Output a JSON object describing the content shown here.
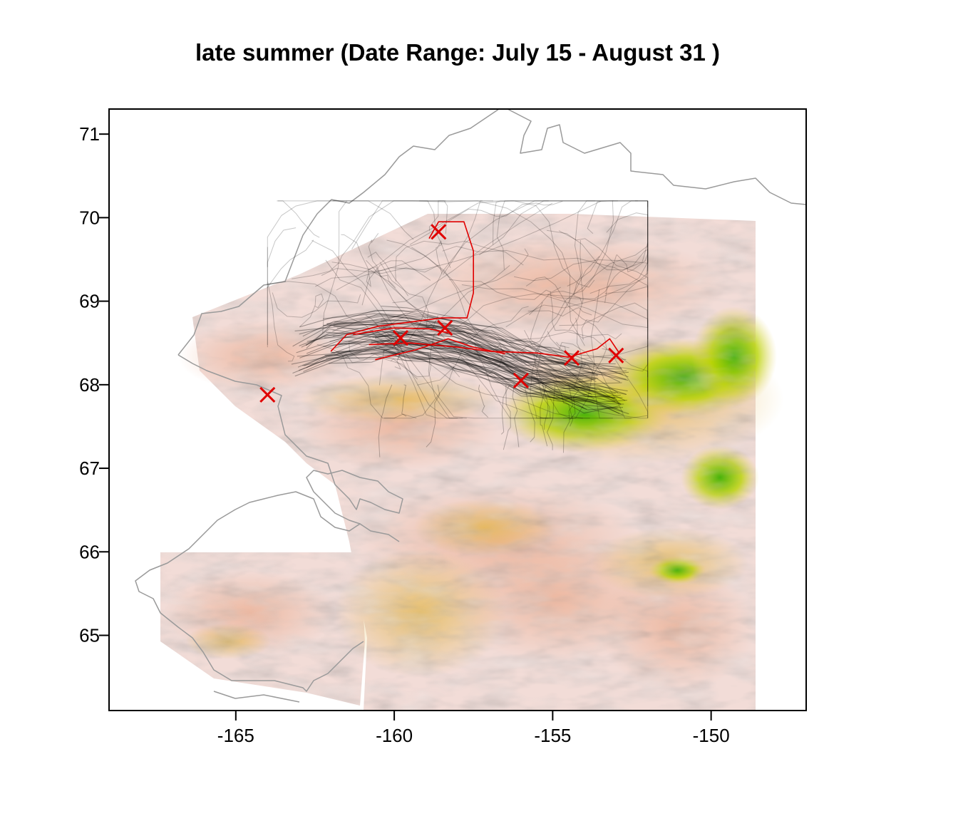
{
  "title": "late summer (Date Range:  July 15 - August 31 )",
  "colors": {
    "coast": "#9a9a9a",
    "track": "#000000",
    "highlight": "#e00000",
    "marker": "#e00000",
    "frame": "#000000"
  },
  "axes": {
    "x": {
      "ticks": [
        -165,
        -160,
        -155,
        -150
      ],
      "labels": [
        "-165",
        "-160",
        "-155",
        "-150"
      ],
      "range": [
        -169,
        -147
      ]
    },
    "y": {
      "ticks": [
        65,
        66,
        67,
        68,
        69,
        70,
        71
      ],
      "labels": [
        "65",
        "66",
        "67",
        "68",
        "69",
        "70",
        "71"
      ],
      "range": [
        64.1,
        71.3
      ]
    }
  },
  "markers": [
    {
      "lon": -164.0,
      "lat": 67.88
    },
    {
      "lon": -158.6,
      "lat": 69.83
    },
    {
      "lon": -159.8,
      "lat": 68.56
    },
    {
      "lon": -158.4,
      "lat": 68.68
    },
    {
      "lon": -156.0,
      "lat": 68.05
    },
    {
      "lon": -154.4,
      "lat": 68.32
    },
    {
      "lon": -153.0,
      "lat": 68.35
    }
  ],
  "red_tracks": [
    [
      [
        -162.0,
        68.4
      ],
      [
        -161.5,
        68.6
      ],
      [
        -160.5,
        68.7
      ],
      [
        -159.5,
        68.75
      ],
      [
        -158.5,
        68.8
      ],
      [
        -157.7,
        68.8
      ],
      [
        -157.5,
        69.1
      ],
      [
        -157.5,
        69.6
      ],
      [
        -157.8,
        69.95
      ],
      [
        -158.6,
        69.95
      ],
      [
        -158.9,
        69.75
      ]
    ],
    [
      [
        -160.8,
        68.48
      ],
      [
        -159.5,
        68.5
      ],
      [
        -158.0,
        68.45
      ],
      [
        -157.0,
        68.4
      ],
      [
        -155.5,
        68.38
      ],
      [
        -154.5,
        68.33
      ],
      [
        -153.6,
        68.43
      ],
      [
        -153.2,
        68.55
      ],
      [
        -152.9,
        68.38
      ]
    ],
    [
      [
        -160.6,
        68.3
      ],
      [
        -159.3,
        68.42
      ],
      [
        -158.3,
        68.55
      ],
      [
        -157.5,
        68.45
      ],
      [
        -156.5,
        68.37
      ]
    ],
    [
      [
        -161.3,
        68.6
      ],
      [
        -160.0,
        68.68
      ],
      [
        -158.9,
        68.67
      ],
      [
        -158.3,
        68.62
      ]
    ]
  ],
  "main_corridor": [
    [
      -163.0,
      68.4
    ],
    [
      -162.0,
      68.55
    ],
    [
      -160.5,
      68.6
    ],
    [
      -159.5,
      68.6
    ],
    [
      -158.0,
      68.5
    ],
    [
      -156.8,
      68.35
    ],
    [
      -155.8,
      68.2
    ],
    [
      -154.8,
      68.1
    ],
    [
      -153.8,
      68.02
    ],
    [
      -152.8,
      67.95
    ]
  ]
}
